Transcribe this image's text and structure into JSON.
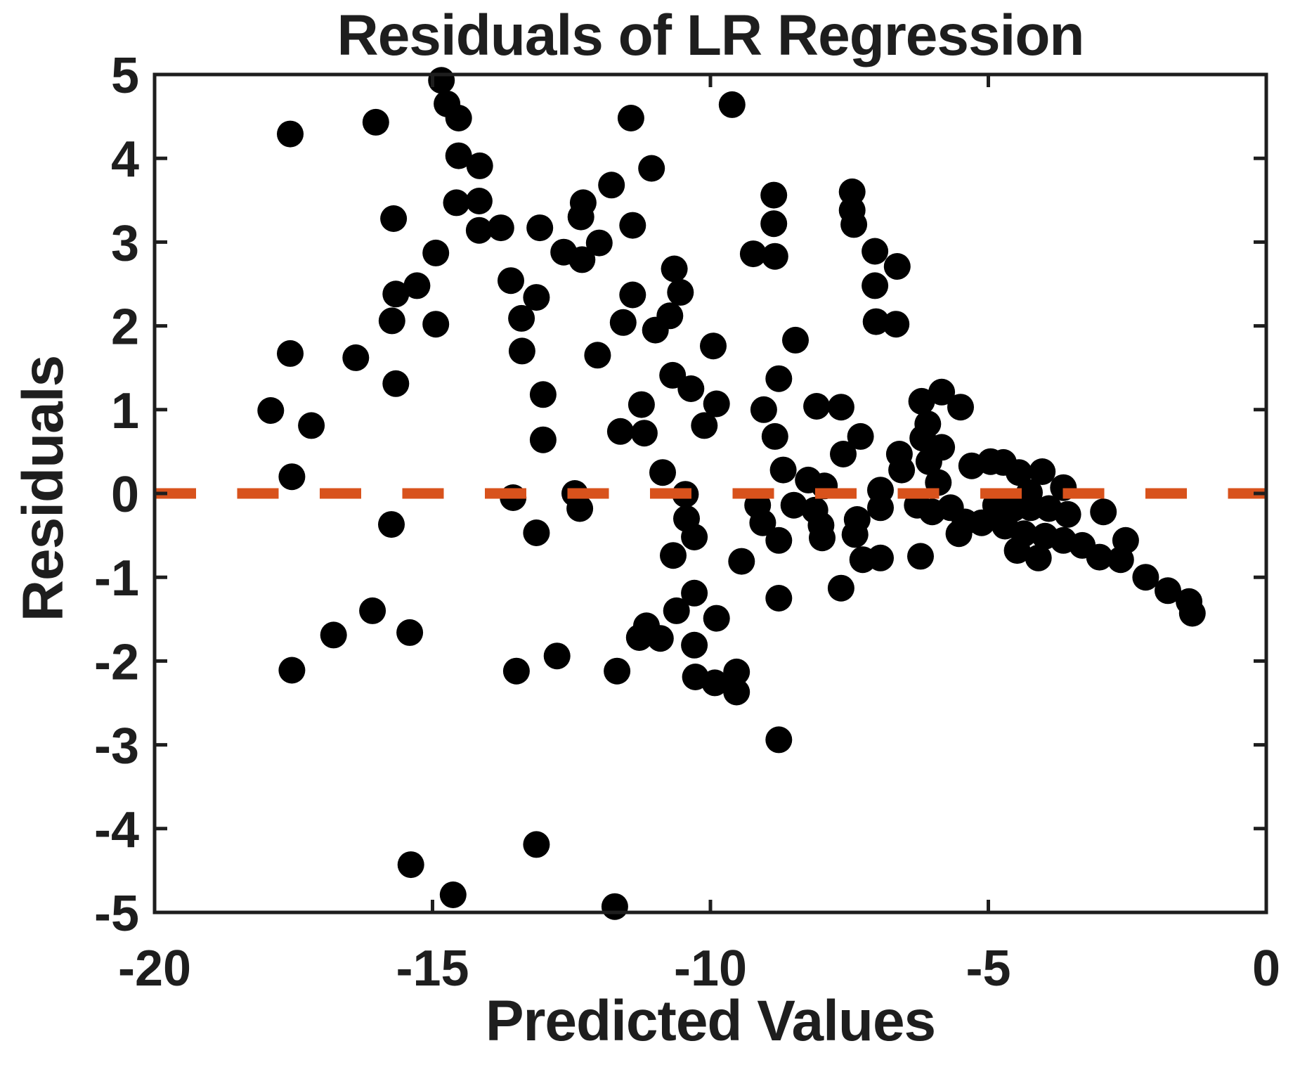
{
  "figure": {
    "title": "Residuals of LR Regression",
    "xlabel": "Predicted Values",
    "ylabel": "Residuals"
  },
  "chart_data": {
    "type": "scatter",
    "title": "Residuals of LR Regression",
    "xlabel": "Predicted Values",
    "ylabel": "Residuals",
    "xlim": [
      -20,
      0
    ],
    "ylim": [
      -5,
      5
    ],
    "xticks": [
      -20,
      -15,
      -10,
      -5,
      0
    ],
    "yticks": [
      5,
      4,
      3,
      2,
      1,
      0,
      -1,
      -2,
      -3,
      -4,
      -5
    ],
    "grid": false,
    "legend": null,
    "marker_color": "#000000",
    "axis_color": "#1E1E1E",
    "text_color": "#1E1E1E",
    "background_color": "#ffffff",
    "zero_line": {
      "y": 0,
      "style": "dashed",
      "color": "#D8521C"
    },
    "points": [
      [
        -17.56,
        4.29
      ],
      [
        -16.02,
        4.43
      ],
      [
        -15.7,
        3.28
      ],
      [
        -15.28,
        2.48
      ],
      [
        -15.66,
        2.38
      ],
      [
        -15.73,
        2.06
      ],
      [
        -17.56,
        1.67
      ],
      [
        -16.38,
        1.62
      ],
      [
        -14.94,
        2.87
      ],
      [
        -14.94,
        2.02
      ],
      [
        -14.84,
        4.93
      ],
      [
        -14.74,
        4.65
      ],
      [
        -14.53,
        4.48
      ],
      [
        -11.43,
        4.48
      ],
      [
        -14.53,
        4.03
      ],
      [
        -14.15,
        3.91
      ],
      [
        -11.06,
        3.88
      ],
      [
        -14.57,
        3.47
      ],
      [
        -14.16,
        3.49
      ],
      [
        -11.78,
        3.68
      ],
      [
        -12.29,
        3.47
      ],
      [
        -12.33,
        3.3
      ],
      [
        -14.16,
        3.14
      ],
      [
        -13.77,
        3.17
      ],
      [
        -13.07,
        3.17
      ],
      [
        -11.4,
        3.2
      ],
      [
        -12.64,
        2.88
      ],
      [
        -12.31,
        2.79
      ],
      [
        -12.0,
        2.99
      ],
      [
        -13.59,
        2.54
      ],
      [
        -13.13,
        2.34
      ],
      [
        -13.4,
        2.09
      ],
      [
        -13.39,
        1.7
      ],
      [
        -10.65,
        2.68
      ],
      [
        -10.54,
        2.4
      ],
      [
        -10.73,
        2.12
      ],
      [
        -10.99,
        1.95
      ],
      [
        -11.4,
        2.37
      ],
      [
        -11.57,
        2.04
      ],
      [
        -12.03,
        1.65
      ],
      [
        -9.95,
        1.76
      ],
      [
        -9.61,
        4.64
      ],
      [
        -8.86,
        3.56
      ],
      [
        -8.86,
        3.22
      ],
      [
        -9.23,
        2.86
      ],
      [
        -8.84,
        2.83
      ],
      [
        -7.45,
        3.6
      ],
      [
        -7.45,
        3.38
      ],
      [
        -7.42,
        3.21
      ],
      [
        -7.04,
        2.89
      ],
      [
        -6.64,
        2.71
      ],
      [
        -7.04,
        2.48
      ],
      [
        -7.02,
        2.05
      ],
      [
        -6.66,
        2.02
      ],
      [
        -8.47,
        1.83
      ],
      [
        -15.66,
        1.31
      ],
      [
        -17.91,
        0.99
      ],
      [
        -17.18,
        0.81
      ],
      [
        -17.53,
        0.2
      ],
      [
        -15.74,
        -0.37
      ],
      [
        -16.08,
        -1.4
      ],
      [
        -16.78,
        -1.69
      ],
      [
        -15.41,
        -1.66
      ],
      [
        -13.01,
        1.18
      ],
      [
        -13.01,
        0.64
      ],
      [
        -10.68,
        1.41
      ],
      [
        -10.35,
        1.25
      ],
      [
        -11.24,
        1.06
      ],
      [
        -11.62,
        0.74
      ],
      [
        -11.19,
        0.72
      ],
      [
        -10.11,
        0.81
      ],
      [
        -9.89,
        1.07
      ],
      [
        -13.55,
        -0.05
      ],
      [
        -12.44,
        0.0
      ],
      [
        -12.35,
        -0.18
      ],
      [
        -13.13,
        -0.47
      ],
      [
        -10.86,
        0.25
      ],
      [
        -10.45,
        -0.01
      ],
      [
        -10.43,
        -0.3
      ],
      [
        -10.29,
        -0.52
      ],
      [
        -10.67,
        -0.74
      ],
      [
        -10.29,
        -1.19
      ],
      [
        -10.61,
        -1.4
      ],
      [
        -11.15,
        -1.58
      ],
      [
        -9.89,
        -1.49
      ],
      [
        -8.77,
        1.37
      ],
      [
        -9.04,
        1.0
      ],
      [
        -8.09,
        1.04
      ],
      [
        -7.65,
        1.03
      ],
      [
        -8.84,
        0.68
      ],
      [
        -7.3,
        0.68
      ],
      [
        -7.61,
        0.47
      ],
      [
        -8.69,
        0.28
      ],
      [
        -8.24,
        0.16
      ],
      [
        -7.95,
        0.09
      ],
      [
        -8.5,
        -0.14
      ],
      [
        -8.12,
        -0.2
      ],
      [
        -9.15,
        -0.14
      ],
      [
        -9.06,
        -0.35
      ],
      [
        -8.77,
        -0.56
      ],
      [
        -8.01,
        -0.38
      ],
      [
        -7.99,
        -0.53
      ],
      [
        -7.36,
        -0.31
      ],
      [
        -7.4,
        -0.49
      ],
      [
        -7.26,
        -0.79
      ],
      [
        -6.94,
        -0.77
      ],
      [
        -9.44,
        -0.81
      ],
      [
        -8.77,
        -1.25
      ],
      [
        -7.65,
        -1.13
      ],
      [
        -6.94,
        0.04
      ],
      [
        -6.94,
        -0.17
      ],
      [
        -6.6,
        0.47
      ],
      [
        -6.56,
        0.28
      ],
      [
        -6.18,
        0.66
      ],
      [
        -5.84,
        0.55
      ],
      [
        -6.07,
        0.38
      ],
      [
        -5.9,
        0.13
      ],
      [
        -6.28,
        -0.14
      ],
      [
        -6.01,
        -0.22
      ],
      [
        -5.68,
        -0.17
      ],
      [
        -5.42,
        -0.34
      ],
      [
        -5.12,
        -0.35
      ],
      [
        -6.22,
        -0.75
      ],
      [
        -5.53,
        -0.48
      ],
      [
        -5.3,
        0.33
      ],
      [
        -4.96,
        0.38
      ],
      [
        -6.2,
        1.1
      ],
      [
        -5.84,
        1.21
      ],
      [
        -5.5,
        1.03
      ],
      [
        -6.09,
        0.83
      ],
      [
        -4.73,
        0.37
      ],
      [
        -4.45,
        0.25
      ],
      [
        -4.03,
        0.26
      ],
      [
        -3.65,
        0.07
      ],
      [
        -4.26,
        0.01
      ],
      [
        -4.87,
        -0.14
      ],
      [
        -4.55,
        -0.18
      ],
      [
        -4.24,
        -0.17
      ],
      [
        -3.91,
        -0.18
      ],
      [
        -3.57,
        -0.25
      ],
      [
        -4.7,
        -0.39
      ],
      [
        -4.36,
        -0.48
      ],
      [
        -3.98,
        -0.51
      ],
      [
        -3.65,
        -0.56
      ],
      [
        -4.48,
        -0.68
      ],
      [
        -4.1,
        -0.77
      ],
      [
        -3.31,
        -0.62
      ],
      [
        -2.93,
        -0.22
      ],
      [
        -2.53,
        -0.56
      ],
      [
        -3.0,
        -0.76
      ],
      [
        -2.62,
        -0.79
      ],
      [
        -2.17,
        -1.0
      ],
      [
        -1.77,
        -1.16
      ],
      [
        -1.39,
        -1.29
      ],
      [
        -1.33,
        -1.43
      ],
      [
        -17.53,
        -2.11
      ],
      [
        -15.39,
        -4.43
      ],
      [
        -13.49,
        -2.12
      ],
      [
        -12.76,
        -1.94
      ],
      [
        -11.68,
        -2.12
      ],
      [
        -11.28,
        -1.72
      ],
      [
        -10.9,
        -1.73
      ],
      [
        -10.29,
        -1.81
      ],
      [
        -10.27,
        -2.19
      ],
      [
        -9.92,
        -2.26
      ],
      [
        -9.53,
        -2.13
      ],
      [
        -9.53,
        -2.37
      ],
      [
        -8.77,
        -2.94
      ],
      [
        -13.13,
        -4.19
      ],
      [
        -14.63,
        -4.79
      ],
      [
        -11.72,
        -4.93
      ]
    ]
  }
}
